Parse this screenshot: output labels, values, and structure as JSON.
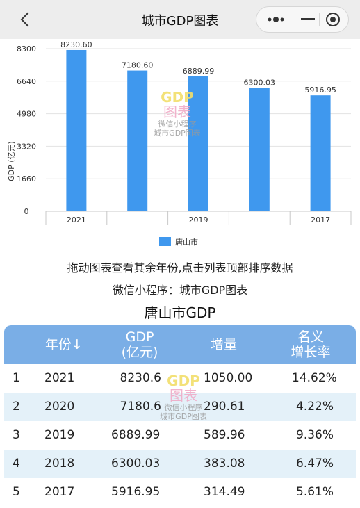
{
  "nav": {
    "title": "城市GDP图表",
    "back_icon": "chevron-left-icon",
    "more_icon": "more-dots-icon",
    "minimize_icon": "minimize-icon",
    "close_icon": "target-close-icon"
  },
  "chart_data": {
    "type": "bar",
    "categories": [
      "2021",
      "2020",
      "2019",
      "2018",
      "2017"
    ],
    "visible_tick_labels": [
      "2021",
      "",
      "2019",
      "",
      "2017"
    ],
    "values": [
      8230.6,
      7180.6,
      6889.99,
      6300.03,
      5916.95
    ],
    "value_labels": [
      "8230.60",
      "7180.60",
      "6889.99",
      "6300.03",
      "5916.95"
    ],
    "ylabel": "GDP (亿元)",
    "yticks": [
      "0",
      "1660",
      "3320",
      "4980",
      "6640",
      "8300"
    ],
    "ylim": [
      0,
      8300
    ],
    "legend": "唐山市",
    "legend_position": "bottom-center",
    "bar_color": "#3f98ee",
    "grid": true
  },
  "watermark": {
    "line1": "GDP",
    "line2": "图表",
    "line3": "微信小程序",
    "line4": "城市GDP图表"
  },
  "hint1": "拖动图表查看其余年份,点击列表顶部排序数据",
  "hint2": "微信小程序：城市GDP图表",
  "table": {
    "title": "唐山市GDP",
    "headers": {
      "year": "年份↓",
      "gdp1": "GDP",
      "gdp2": "(亿元)",
      "inc": "增量",
      "rate1": "名义",
      "rate2": "增长率"
    },
    "rows": [
      {
        "rank": "1",
        "year": "2021",
        "gdp": "8230.6",
        "inc": "1050.00",
        "rate": "14.62%"
      },
      {
        "rank": "2",
        "year": "2020",
        "gdp": "7180.6",
        "inc": "290.61",
        "rate": "4.22%"
      },
      {
        "rank": "3",
        "year": "2019",
        "gdp": "6889.99",
        "inc": "589.96",
        "rate": "9.36%"
      },
      {
        "rank": "4",
        "year": "2018",
        "gdp": "6300.03",
        "inc": "383.08",
        "rate": "6.47%"
      },
      {
        "rank": "5",
        "year": "2017",
        "gdp": "5916.95",
        "inc": "314.49",
        "rate": "5.61%"
      }
    ]
  }
}
